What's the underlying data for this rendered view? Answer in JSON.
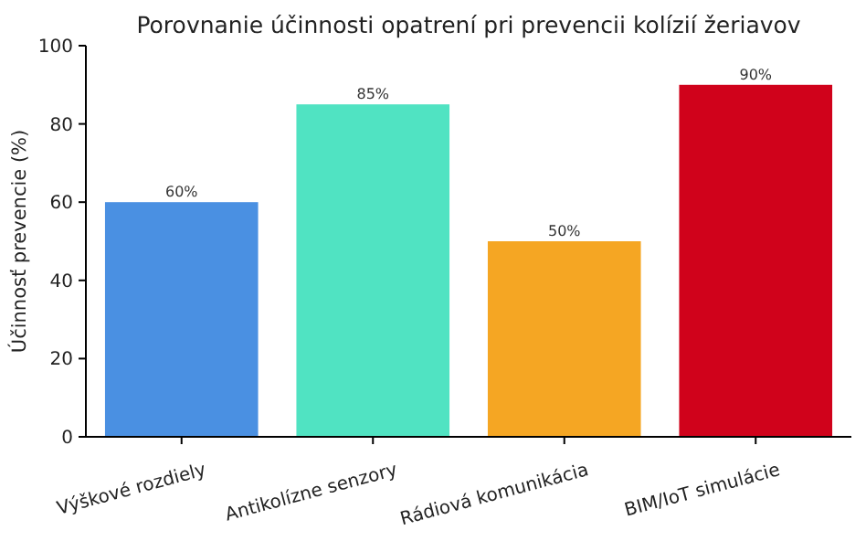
{
  "chart_data": {
    "type": "bar",
    "title": "Porovnanie účinnosti opatrení pri prevencii kolízií žeriavov",
    "ylabel": "Účinnosť prevencie (%)",
    "categories": [
      "Výškové rozdiely",
      "Antikolízne senzory",
      "Rádiová komunikácia",
      "BIM/IoT simulácie"
    ],
    "values": [
      60,
      85,
      50,
      90
    ],
    "colors": [
      "#4a90e2",
      "#50e3c2",
      "#f5a623",
      "#d0021b"
    ],
    "value_labels": [
      "60%",
      "85%",
      "50%",
      "90%"
    ],
    "ylim": [
      0,
      100
    ],
    "yticks": [
      0,
      20,
      40,
      60,
      80,
      100
    ],
    "grid": false
  }
}
